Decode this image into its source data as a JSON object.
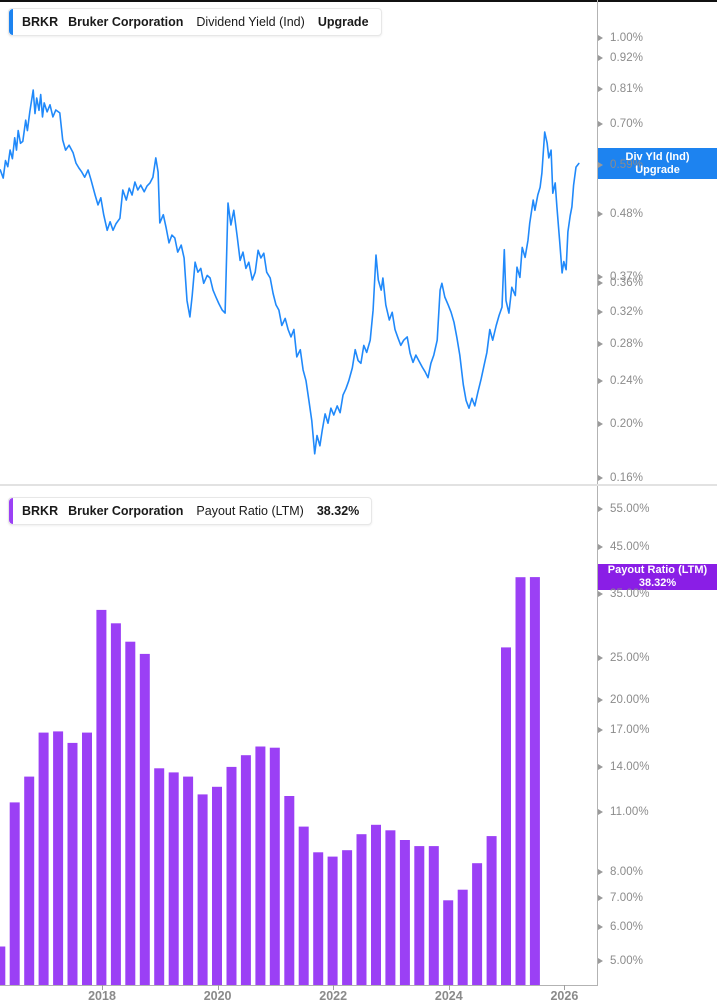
{
  "app": {
    "kind": "stock-metric-chart",
    "ticker": "BRKR",
    "company": "Bruker Corporation"
  },
  "top_panel": {
    "legend": {
      "ticker": "BRKR",
      "company": "Bruker Corporation",
      "metric": "Dividend Yield (Ind)",
      "action": "Upgrade"
    },
    "badge": {
      "line1": "Div Yld (Ind)",
      "line2": "Upgrade",
      "hidden_axis_value": "0.59%",
      "color": "#1d83f0"
    }
  },
  "bottom_panel": {
    "legend": {
      "ticker": "BRKR",
      "company": "Bruker Corporation",
      "metric": "Payout Ratio (LTM)",
      "value": "38.32%"
    },
    "badge": {
      "line1": "Payout Ratio (LTM)",
      "line2": "38.32%",
      "color": "#8a1ee6"
    }
  },
  "x_axis": {
    "ticks": [
      "2018",
      "2020",
      "2022",
      "2024",
      "2026"
    ]
  },
  "colors": {
    "line_blue": "#2089fa",
    "badge_blue": "#1d83f0",
    "bar_purple": "#9b40f5",
    "badge_purple": "#8a1ee6",
    "tick_gray": "#8b8b8b",
    "axis_gray": "#b3b3b3"
  },
  "chart_data": [
    {
      "type": "line",
      "title": "BRKR Dividend Yield (Ind)",
      "unit": "%",
      "yscale": "log",
      "ylim": [
        0.156,
        1.17
      ],
      "legend_position": "right-axis-badge",
      "grid": false,
      "yticks": [
        {
          "label": "1.00%",
          "v": 1.0
        },
        {
          "label": "0.92%",
          "v": 0.92
        },
        {
          "label": "0.81%",
          "v": 0.81
        },
        {
          "label": "0.70%",
          "v": 0.7
        },
        {
          "label": "0.59%",
          "v": 0.59
        },
        {
          "label": "0.48%",
          "v": 0.48
        },
        {
          "label": "0.37%",
          "v": 0.37
        },
        {
          "label": "0.36%",
          "v": 0.36
        },
        {
          "label": "0.32%",
          "v": 0.32
        },
        {
          "label": "0.28%",
          "v": 0.28
        },
        {
          "label": "0.24%",
          "v": 0.24
        },
        {
          "label": "0.20%",
          "v": 0.2
        },
        {
          "label": "0.16%",
          "v": 0.16
        }
      ],
      "points": [
        [
          2016.24,
          0.577
        ],
        [
          2016.29,
          0.558
        ],
        [
          2016.33,
          0.6
        ],
        [
          2016.37,
          0.585
        ],
        [
          2016.41,
          0.627
        ],
        [
          2016.45,
          0.605
        ],
        [
          2016.49,
          0.66
        ],
        [
          2016.52,
          0.627
        ],
        [
          2016.55,
          0.68
        ],
        [
          2016.59,
          0.645
        ],
        [
          2016.63,
          0.65
        ],
        [
          2016.68,
          0.71
        ],
        [
          2016.71,
          0.68
        ],
        [
          2016.75,
          0.735
        ],
        [
          2016.81,
          0.805
        ],
        [
          2016.84,
          0.73
        ],
        [
          2016.87,
          0.779
        ],
        [
          2016.91,
          0.74
        ],
        [
          2016.94,
          0.79
        ],
        [
          2016.97,
          0.72
        ],
        [
          2017.0,
          0.763
        ],
        [
          2017.05,
          0.735
        ],
        [
          2017.1,
          0.757
        ],
        [
          2017.15,
          0.72
        ],
        [
          2017.2,
          0.741
        ],
        [
          2017.27,
          0.732
        ],
        [
          2017.32,
          0.654
        ],
        [
          2017.37,
          0.627
        ],
        [
          2017.43,
          0.64
        ],
        [
          2017.5,
          0.62
        ],
        [
          2017.55,
          0.594
        ],
        [
          2017.6,
          0.582
        ],
        [
          2017.65,
          0.572
        ],
        [
          2017.7,
          0.56
        ],
        [
          2017.76,
          0.577
        ],
        [
          2017.81,
          0.554
        ],
        [
          2017.88,
          0.52
        ],
        [
          2017.93,
          0.499
        ],
        [
          2017.98,
          0.514
        ],
        [
          2018.03,
          0.479
        ],
        [
          2018.09,
          0.449
        ],
        [
          2018.14,
          0.465
        ],
        [
          2018.19,
          0.449
        ],
        [
          2018.24,
          0.461
        ],
        [
          2018.31,
          0.472
        ],
        [
          2018.36,
          0.531
        ],
        [
          2018.42,
          0.509
        ],
        [
          2018.47,
          0.535
        ],
        [
          2018.52,
          0.52
        ],
        [
          2018.57,
          0.549
        ],
        [
          2018.62,
          0.531
        ],
        [
          2018.67,
          0.542
        ],
        [
          2018.73,
          0.527
        ],
        [
          2018.78,
          0.54
        ],
        [
          2018.83,
          0.547
        ],
        [
          2018.88,
          0.56
        ],
        [
          2018.93,
          0.607
        ],
        [
          2018.97,
          0.572
        ],
        [
          2019.0,
          0.463
        ],
        [
          2019.06,
          0.479
        ],
        [
          2019.11,
          0.453
        ],
        [
          2019.16,
          0.426
        ],
        [
          2019.21,
          0.44
        ],
        [
          2019.26,
          0.435
        ],
        [
          2019.31,
          0.41
        ],
        [
          2019.37,
          0.422
        ],
        [
          2019.42,
          0.4
        ],
        [
          2019.47,
          0.335
        ],
        [
          2019.52,
          0.313
        ],
        [
          2019.56,
          0.342
        ],
        [
          2019.61,
          0.393
        ],
        [
          2019.66,
          0.377
        ],
        [
          2019.71,
          0.383
        ],
        [
          2019.76,
          0.36
        ],
        [
          2019.82,
          0.372
        ],
        [
          2019.87,
          0.368
        ],
        [
          2019.92,
          0.35
        ],
        [
          2019.97,
          0.34
        ],
        [
          2020.02,
          0.331
        ],
        [
          2020.08,
          0.322
        ],
        [
          2020.13,
          0.318
        ],
        [
          2020.18,
          0.503
        ],
        [
          2020.23,
          0.459
        ],
        [
          2020.28,
          0.488
        ],
        [
          2020.34,
          0.436
        ],
        [
          2020.39,
          0.396
        ],
        [
          2020.44,
          0.41
        ],
        [
          2020.49,
          0.383
        ],
        [
          2020.54,
          0.393
        ],
        [
          2020.6,
          0.365
        ],
        [
          2020.65,
          0.377
        ],
        [
          2020.7,
          0.413
        ],
        [
          2020.75,
          0.4
        ],
        [
          2020.8,
          0.408
        ],
        [
          2020.85,
          0.377
        ],
        [
          2020.91,
          0.368
        ],
        [
          2020.96,
          0.345
        ],
        [
          2021.01,
          0.329
        ],
        [
          2021.06,
          0.322
        ],
        [
          2021.11,
          0.302
        ],
        [
          2021.17,
          0.311
        ],
        [
          2021.22,
          0.297
        ],
        [
          2021.27,
          0.288
        ],
        [
          2021.32,
          0.297
        ],
        [
          2021.37,
          0.265
        ],
        [
          2021.43,
          0.273
        ],
        [
          2021.48,
          0.251
        ],
        [
          2021.53,
          0.24
        ],
        [
          2021.58,
          0.221
        ],
        [
          2021.63,
          0.203
        ],
        [
          2021.68,
          0.177
        ],
        [
          2021.72,
          0.191
        ],
        [
          2021.77,
          0.183
        ],
        [
          2021.81,
          0.195
        ],
        [
          2021.86,
          0.209
        ],
        [
          2021.91,
          0.201
        ],
        [
          2021.96,
          0.214
        ],
        [
          2022.01,
          0.208
        ],
        [
          2022.07,
          0.216
        ],
        [
          2022.12,
          0.21
        ],
        [
          2022.17,
          0.226
        ],
        [
          2022.22,
          0.232
        ],
        [
          2022.27,
          0.24
        ],
        [
          2022.33,
          0.253
        ],
        [
          2022.38,
          0.273
        ],
        [
          2022.43,
          0.261
        ],
        [
          2022.48,
          0.258
        ],
        [
          2022.53,
          0.278
        ],
        [
          2022.58,
          0.27
        ],
        [
          2022.64,
          0.284
        ],
        [
          2022.69,
          0.322
        ],
        [
          2022.74,
          0.405
        ],
        [
          2022.78,
          0.365
        ],
        [
          2022.83,
          0.35
        ],
        [
          2022.86,
          0.368
        ],
        [
          2022.91,
          0.329
        ],
        [
          2022.97,
          0.309
        ],
        [
          2023.02,
          0.319
        ],
        [
          2023.07,
          0.297
        ],
        [
          2023.12,
          0.287
        ],
        [
          2023.17,
          0.278
        ],
        [
          2023.22,
          0.284
        ],
        [
          2023.28,
          0.288
        ],
        [
          2023.33,
          0.269
        ],
        [
          2023.38,
          0.259
        ],
        [
          2023.43,
          0.267
        ],
        [
          2023.48,
          0.261
        ],
        [
          2023.54,
          0.254
        ],
        [
          2023.59,
          0.249
        ],
        [
          2023.64,
          0.243
        ],
        [
          2023.69,
          0.258
        ],
        [
          2023.74,
          0.267
        ],
        [
          2023.8,
          0.284
        ],
        [
          2023.85,
          0.35
        ],
        [
          2023.88,
          0.36
        ],
        [
          2023.93,
          0.34
        ],
        [
          2023.99,
          0.329
        ],
        [
          2024.04,
          0.319
        ],
        [
          2024.09,
          0.306
        ],
        [
          2024.14,
          0.287
        ],
        [
          2024.19,
          0.267
        ],
        [
          2024.25,
          0.236
        ],
        [
          2024.3,
          0.221
        ],
        [
          2024.35,
          0.214
        ],
        [
          2024.4,
          0.223
        ],
        [
          2024.45,
          0.216
        ],
        [
          2024.5,
          0.228
        ],
        [
          2024.56,
          0.242
        ],
        [
          2024.61,
          0.256
        ],
        [
          2024.66,
          0.27
        ],
        [
          2024.71,
          0.297
        ],
        [
          2024.76,
          0.284
        ],
        [
          2024.82,
          0.302
        ],
        [
          2024.87,
          0.315
        ],
        [
          2024.92,
          0.326
        ],
        [
          2024.96,
          0.414
        ],
        [
          2024.99,
          0.335
        ],
        [
          2025.04,
          0.318
        ],
        [
          2025.09,
          0.354
        ],
        [
          2025.15,
          0.342
        ],
        [
          2025.18,
          0.385
        ],
        [
          2025.23,
          0.369
        ],
        [
          2025.27,
          0.418
        ],
        [
          2025.32,
          0.401
        ],
        [
          2025.37,
          0.431
        ],
        [
          2025.4,
          0.462
        ],
        [
          2025.46,
          0.509
        ],
        [
          2025.49,
          0.488
        ],
        [
          2025.54,
          0.52
        ],
        [
          2025.58,
          0.537
        ],
        [
          2025.61,
          0.57
        ],
        [
          2025.66,
          0.676
        ],
        [
          2025.7,
          0.646
        ],
        [
          2025.73,
          0.607
        ],
        [
          2025.77,
          0.627
        ],
        [
          2025.8,
          0.524
        ],
        [
          2025.84,
          0.547
        ],
        [
          2025.87,
          0.495
        ],
        [
          2025.92,
          0.426
        ],
        [
          2025.96,
          0.376
        ],
        [
          2025.99,
          0.394
        ],
        [
          2026.03,
          0.381
        ],
        [
          2026.06,
          0.446
        ],
        [
          2026.1,
          0.477
        ],
        [
          2026.13,
          0.495
        ],
        [
          2026.16,
          0.542
        ],
        [
          2026.2,
          0.584
        ],
        [
          2026.25,
          0.593
        ]
      ]
    },
    {
      "type": "bar",
      "title": "BRKR Payout Ratio (LTM)",
      "unit": "%",
      "yscale": "log",
      "ylim": [
        4.4,
        61.8
      ],
      "latest_value": 38.32,
      "grid": false,
      "x_start": 2016.24,
      "x_step": 0.25,
      "yticks": [
        {
          "label": "55.00%",
          "v": 55
        },
        {
          "label": "45.00%",
          "v": 45
        },
        {
          "label": "35.00%",
          "v": 35
        },
        {
          "label": "25.00%",
          "v": 25
        },
        {
          "label": "20.00%",
          "v": 20
        },
        {
          "label": "17.00%",
          "v": 17
        },
        {
          "label": "14.00%",
          "v": 14
        },
        {
          "label": "11.00%",
          "v": 11
        },
        {
          "label": "8.00%",
          "v": 8
        },
        {
          "label": "7.00%",
          "v": 7
        },
        {
          "label": "6.00%",
          "v": 6
        },
        {
          "label": "5.00%",
          "v": 5
        }
      ],
      "bars": [
        {
          "q": "Q1 2016",
          "v": 5.4
        },
        {
          "q": "Q2 2016",
          "v": 11.6
        },
        {
          "q": "Q3 2016",
          "v": 13.3
        },
        {
          "q": "Q4 2016",
          "v": 16.8
        },
        {
          "q": "Q1 2017",
          "v": 16.9
        },
        {
          "q": "Q2 2017",
          "v": 15.9
        },
        {
          "q": "Q3 2017",
          "v": 16.8
        },
        {
          "q": "Q4 2017",
          "v": 32.2
        },
        {
          "q": "Q1 2018",
          "v": 30.0
        },
        {
          "q": "Q2 2018",
          "v": 27.2
        },
        {
          "q": "Q3 2018",
          "v": 25.5
        },
        {
          "q": "Q4 2018",
          "v": 13.9
        },
        {
          "q": "Q1 2019",
          "v": 13.6
        },
        {
          "q": "Q2 2019",
          "v": 13.3
        },
        {
          "q": "Q3 2019",
          "v": 12.1
        },
        {
          "q": "Q4 2019",
          "v": 12.6
        },
        {
          "q": "Q1 2020",
          "v": 14.0
        },
        {
          "q": "Q2 2020",
          "v": 14.9
        },
        {
          "q": "Q3 2020",
          "v": 15.6
        },
        {
          "q": "Q4 2020",
          "v": 15.5
        },
        {
          "q": "Q1 2021",
          "v": 12.0
        },
        {
          "q": "Q2 2021",
          "v": 10.2
        },
        {
          "q": "Q3 2021",
          "v": 8.9
        },
        {
          "q": "Q4 2021",
          "v": 8.7
        },
        {
          "q": "Q1 2022",
          "v": 9.0
        },
        {
          "q": "Q2 2022",
          "v": 9.8
        },
        {
          "q": "Q3 2022",
          "v": 10.3
        },
        {
          "q": "Q4 2022",
          "v": 10.0
        },
        {
          "q": "Q1 2023",
          "v": 9.5
        },
        {
          "q": "Q2 2023",
          "v": 9.2
        },
        {
          "q": "Q3 2023",
          "v": 9.2
        },
        {
          "q": "Q4 2023",
          "v": 6.9
        },
        {
          "q": "Q1 2024",
          "v": 7.3
        },
        {
          "q": "Q2 2024",
          "v": 8.4
        },
        {
          "q": "Q3 2024",
          "v": 9.7
        },
        {
          "q": "Q4 2024",
          "v": 26.4
        },
        {
          "q": "Q1 2025",
          "v": 38.3
        },
        {
          "q": "Q2 2025",
          "v": 38.32
        }
      ]
    }
  ]
}
